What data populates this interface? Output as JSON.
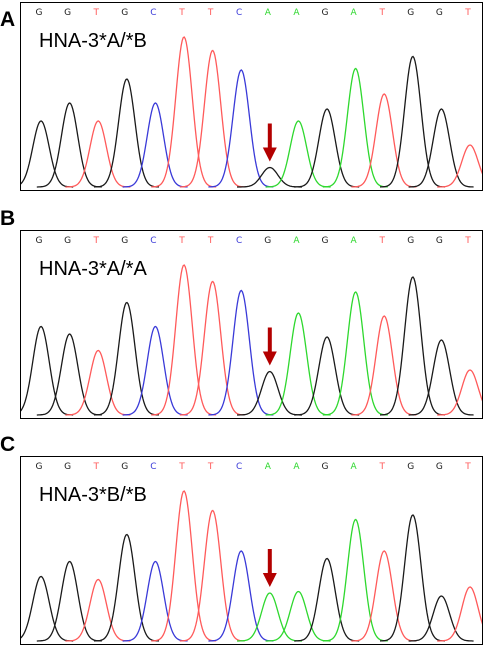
{
  "panels": [
    {
      "letter": "A",
      "genotype": "HNA-3*A/*B",
      "bases": [
        "G",
        "G",
        "T",
        "G",
        "C",
        "T",
        "T",
        "C",
        "A",
        "A",
        "G",
        "A",
        "T",
        "G",
        "G",
        "T"
      ],
      "peaks": [
        {
          "base": "G",
          "h": 0.44
        },
        {
          "base": "G",
          "h": 0.56
        },
        {
          "base": "T",
          "h": 0.44
        },
        {
          "base": "G",
          "h": 0.72
        },
        {
          "base": "C",
          "h": 0.56
        },
        {
          "base": "T",
          "h": 1.0
        },
        {
          "base": "T",
          "h": 0.91
        },
        {
          "base": "C",
          "h": 0.78
        },
        {
          "base": "G",
          "h": 0.13
        },
        {
          "base": "A",
          "h": 0.44
        },
        {
          "base": "G",
          "h": 0.52
        },
        {
          "base": "A",
          "h": 0.79
        },
        {
          "base": "T",
          "h": 0.62
        },
        {
          "base": "G",
          "h": 0.87
        },
        {
          "base": "G",
          "h": 0.52
        },
        {
          "base": "T",
          "h": 0.28
        }
      ],
      "arrow_peak_index": 8
    },
    {
      "letter": "B",
      "genotype": "HNA-3*A/*A",
      "bases": [
        "G",
        "G",
        "T",
        "G",
        "C",
        "T",
        "T",
        "C",
        "G",
        "A",
        "G",
        "A",
        "T",
        "G",
        "G",
        "T"
      ],
      "peaks": [
        {
          "base": "G",
          "h": 0.59
        },
        {
          "base": "G",
          "h": 0.54
        },
        {
          "base": "T",
          "h": 0.43
        },
        {
          "base": "G",
          "h": 0.75
        },
        {
          "base": "C",
          "h": 0.59
        },
        {
          "base": "T",
          "h": 1.0
        },
        {
          "base": "T",
          "h": 0.89
        },
        {
          "base": "C",
          "h": 0.83
        },
        {
          "base": "G",
          "h": 0.29
        },
        {
          "base": "A",
          "h": 0.68
        },
        {
          "base": "G",
          "h": 0.52
        },
        {
          "base": "A",
          "h": 0.82
        },
        {
          "base": "T",
          "h": 0.66
        },
        {
          "base": "G",
          "h": 0.92
        },
        {
          "base": "G",
          "h": 0.5
        },
        {
          "base": "T",
          "h": 0.3
        }
      ],
      "arrow_peak_index": 8
    },
    {
      "letter": "C",
      "genotype": "HNA-3*B/*B",
      "bases": [
        "G",
        "G",
        "T",
        "G",
        "C",
        "T",
        "T",
        "C",
        "A",
        "A",
        "G",
        "A",
        "T",
        "G",
        "G",
        "T"
      ],
      "peaks": [
        {
          "base": "G",
          "h": 0.43
        },
        {
          "base": "G",
          "h": 0.53
        },
        {
          "base": "T",
          "h": 0.41
        },
        {
          "base": "G",
          "h": 0.71
        },
        {
          "base": "C",
          "h": 0.53
        },
        {
          "base": "T",
          "h": 1.0
        },
        {
          "base": "T",
          "h": 0.87
        },
        {
          "base": "C",
          "h": 0.6
        },
        {
          "base": "A",
          "h": 0.32
        },
        {
          "base": "A",
          "h": 0.33
        },
        {
          "base": "G",
          "h": 0.55
        },
        {
          "base": "A",
          "h": 0.81
        },
        {
          "base": "T",
          "h": 0.6
        },
        {
          "base": "G",
          "h": 0.84
        },
        {
          "base": "G",
          "h": 0.3
        },
        {
          "base": "T",
          "h": 0.36
        }
      ],
      "arrow_peak_index": 8
    }
  ],
  "colors": {
    "G": "#1a1a1a",
    "T": "#ff5a5a",
    "C": "#3a3ad8",
    "A": "#2ed82e",
    "arrow": "#b30000"
  }
}
